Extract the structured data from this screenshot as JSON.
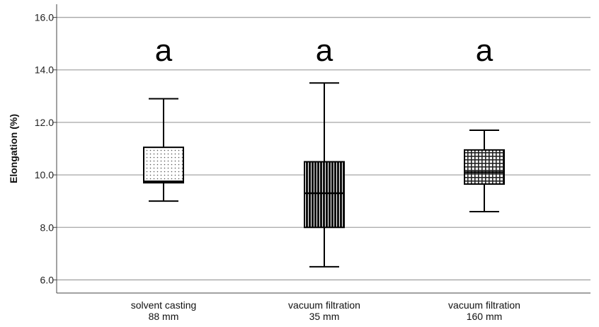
{
  "chart_data": {
    "type": "boxplot",
    "ylabel": "Elongation (%)",
    "xlabel": "",
    "ylim": [
      5.5,
      16.5
    ],
    "yticks": [
      6.0,
      8.0,
      10.0,
      12.0,
      14.0,
      16.0
    ],
    "ytick_labels": [
      "6.0",
      "8.0",
      "10.0",
      "12.0",
      "14.0",
      "16.0"
    ],
    "grid": "horizontal",
    "categories": [
      {
        "line1": "solvent casting",
        "line2": "88 mm"
      },
      {
        "line1": "vacuum filtration",
        "line2": "35 mm"
      },
      {
        "line1": "vacuum filtration",
        "line2": "160 mm"
      }
    ],
    "boxes": [
      {
        "min": 9.0,
        "q1": 9.7,
        "median": 9.75,
        "q3": 11.05,
        "max": 12.9,
        "letter": "a",
        "pattern": "dots"
      },
      {
        "min": 6.5,
        "q1": 8.0,
        "median": 9.3,
        "q3": 10.5,
        "max": 13.5,
        "letter": "a",
        "pattern": "vertical-lines"
      },
      {
        "min": 8.6,
        "q1": 9.65,
        "median": 10.1,
        "q3": 10.95,
        "max": 11.7,
        "letter": "a",
        "pattern": "grid"
      }
    ]
  }
}
